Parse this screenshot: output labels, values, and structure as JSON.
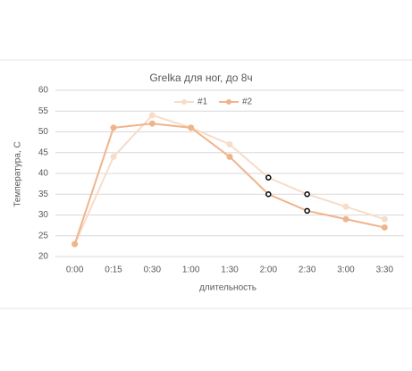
{
  "chart_data": {
    "type": "line",
    "title": "Grelka для ног, до 8ч",
    "x_label": "длительность",
    "y_label": "Температура, С",
    "categories": [
      "0:00",
      "0:15",
      "0:30",
      "1:00",
      "1:30",
      "2:00",
      "2:30",
      "3:00",
      "3:30"
    ],
    "series": [
      {
        "name": "#1",
        "color": "#f7dcc8",
        "values": [
          23,
          44,
          54,
          51,
          47,
          39,
          35,
          32,
          29
        ]
      },
      {
        "name": "#2",
        "color": "#f0b48c",
        "values": [
          23,
          51,
          52,
          51,
          44,
          35,
          31,
          29,
          27
        ]
      }
    ],
    "highlight": [
      5,
      6
    ],
    "ylim": [
      20,
      60
    ],
    "yticks": [
      20,
      25,
      30,
      35,
      40,
      45,
      50,
      55,
      60
    ],
    "grid": true,
    "legend": "top"
  }
}
